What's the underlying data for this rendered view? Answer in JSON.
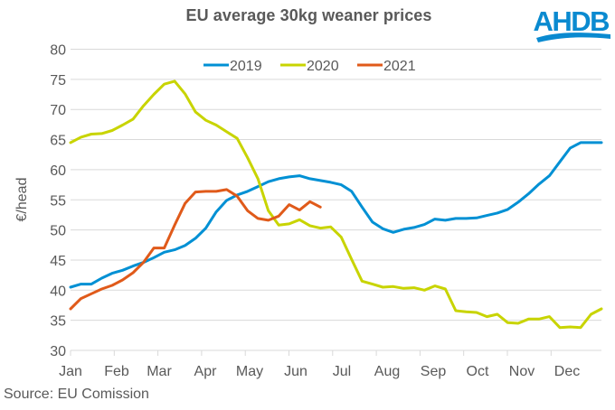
{
  "chart_data": {
    "type": "line",
    "title": "EU average  30kg  weaner prices",
    "xlabel": "",
    "ylabel": "€/head",
    "ylim": [
      30,
      80
    ],
    "yticks": [
      30,
      35,
      40,
      45,
      50,
      55,
      60,
      65,
      70,
      75,
      80
    ],
    "x_unit": "week",
    "xlim": [
      1,
      52
    ],
    "categories": [
      "Jan",
      "Feb",
      "Mar",
      "Apr",
      "May",
      "Jun",
      "Jul",
      "Aug",
      "Sep",
      "Oct",
      "Nov",
      "Dec"
    ],
    "grid": "horizontal",
    "legend_position": "top-center",
    "series": [
      {
        "name": "2019",
        "color": "#0090D4",
        "values": [
          40.5,
          41.0,
          41.0,
          42.0,
          42.8,
          43.3,
          44.0,
          44.6,
          45.4,
          46.3,
          46.7,
          47.4,
          48.6,
          50.3,
          53.0,
          54.9,
          55.8,
          56.4,
          57.2,
          58.0,
          58.5,
          58.8,
          59.0,
          58.5,
          58.2,
          57.9,
          57.5,
          56.4,
          53.8,
          51.3,
          50.2,
          49.6,
          50.1,
          50.4,
          50.9,
          51.8,
          51.6,
          51.9,
          51.9,
          52.0,
          52.4,
          52.8,
          53.4,
          54.6,
          56.0,
          57.6,
          59.0,
          61.3,
          63.6,
          64.5,
          64.5,
          64.5
        ]
      },
      {
        "name": "2020",
        "color": "#C8D400",
        "values": [
          64.5,
          65.4,
          65.9,
          66.0,
          66.5,
          67.4,
          68.4,
          70.6,
          72.5,
          74.2,
          74.7,
          72.6,
          69.6,
          68.2,
          67.4,
          66.3,
          65.2,
          62.0,
          58.5,
          53.2,
          50.8,
          51.0,
          51.7,
          50.7,
          50.3,
          50.5,
          48.8,
          45.1,
          41.5,
          41.0,
          40.5,
          40.6,
          40.3,
          40.4,
          40.0,
          40.7,
          40.2,
          36.6,
          36.4,
          36.3,
          35.6,
          36.0,
          34.6,
          34.5,
          35.2,
          35.2,
          35.6,
          33.8,
          33.9,
          33.8,
          36.0,
          36.9
        ]
      },
      {
        "name": "2021",
        "color": "#E05A1A",
        "values": [
          36.9,
          38.6,
          39.4,
          40.2,
          40.8,
          41.7,
          42.9,
          44.6,
          47.0,
          47.0,
          50.8,
          54.4,
          56.3,
          56.4,
          56.4,
          56.7,
          55.6,
          53.2,
          51.9,
          51.6,
          52.3,
          54.2,
          53.3,
          54.7,
          53.8
        ]
      }
    ],
    "source": "Source: EU Comission"
  },
  "logo": {
    "text": "AHDB",
    "color": "#0A8AD0"
  }
}
